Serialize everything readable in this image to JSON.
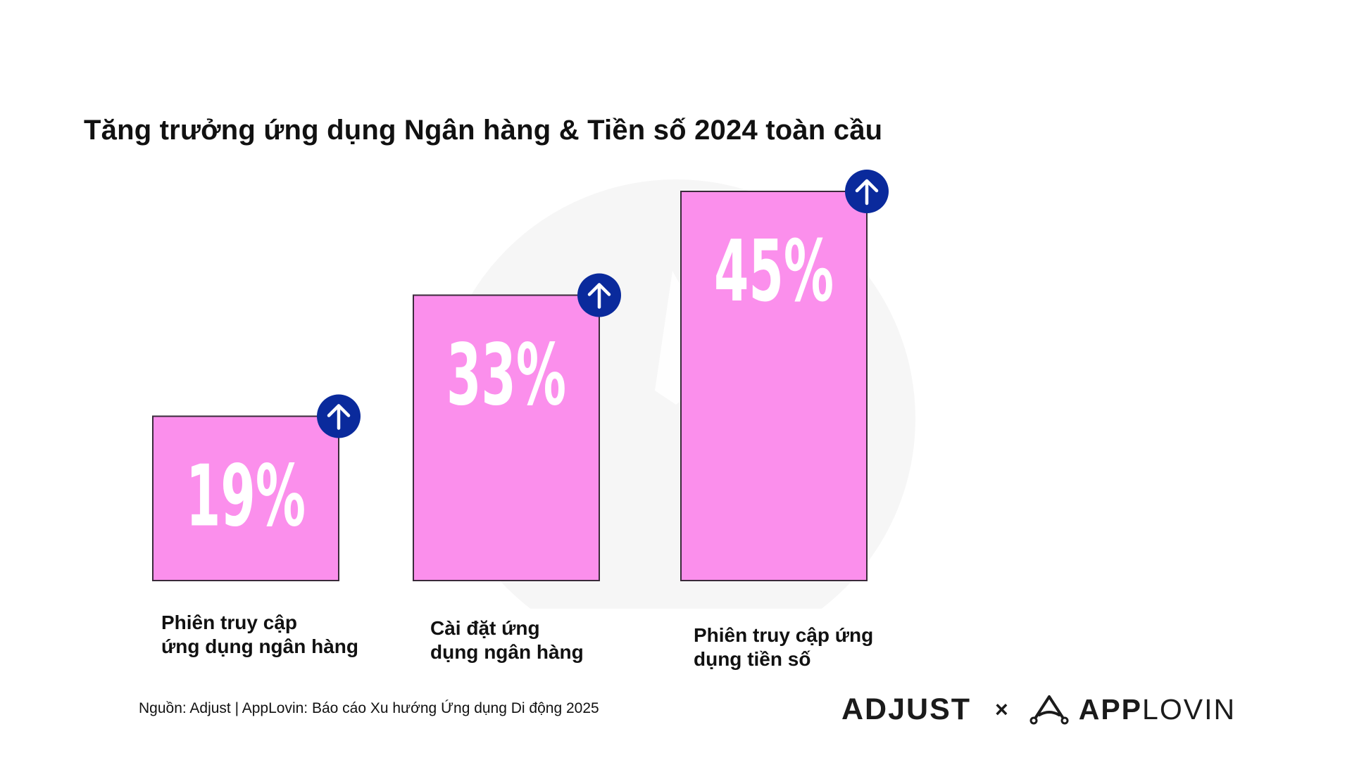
{
  "title": "Tăng trưởng ứng dụng Ngân hàng & Tiền số 2024 toàn cầu",
  "source": "Nguồn: Adjust | AppLovin: Báo cáo Xu hướng Ứng dụng Di động 2025",
  "logos": {
    "adjust": "ADJUST",
    "separator": "×",
    "applovin_app": "APP",
    "applovin_lovin": "LOVIN"
  },
  "colors": {
    "bar_fill": "#fb8fec",
    "bar_stroke": "#3a2a3a",
    "badge": "#0a2a9c",
    "value_text": "#ffffff",
    "watermark": "#f6f6f6"
  },
  "chart_data": {
    "type": "bar",
    "categories": [
      "Phiên truy cập\nứng dụng ngân hàng",
      "Cài đặt ứng\n dụng ngân hàng",
      "Phiên truy cập ứng\ndụng tiền số"
    ],
    "values": [
      19,
      33,
      45
    ],
    "value_labels": [
      "19%",
      "33%",
      "45%"
    ],
    "value_unit": "%",
    "indicator": "up-arrow",
    "title": "Tăng trưởng ứng dụng Ngân hàng & Tiền số 2024 toàn cầu",
    "xlabel": "",
    "ylabel": "",
    "grid": false,
    "legend": "none"
  }
}
